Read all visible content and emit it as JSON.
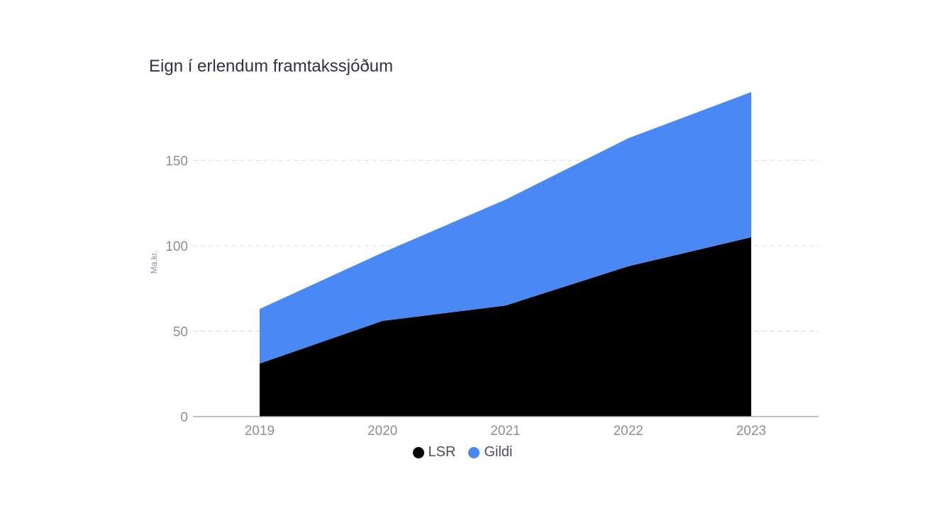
{
  "chart_data": {
    "type": "area",
    "stacked": true,
    "title": "Eign í erlendum framtakssjóðum",
    "ylabel": "Ma.kr.",
    "xlabel": "",
    "categories": [
      "2019",
      "2020",
      "2021",
      "2022",
      "2023"
    ],
    "ylim": [
      0,
      190
    ],
    "yticks": [
      0,
      50,
      100,
      150
    ],
    "grid": "horizontal-dashed",
    "legend_position": "bottom-center",
    "series": [
      {
        "name": "LSR",
        "color": "#000000",
        "values": [
          31,
          56,
          65,
          88,
          105
        ]
      },
      {
        "name": "Gildi",
        "color": "#4a88f5",
        "values": [
          32,
          40,
          62,
          75,
          85
        ]
      }
    ]
  }
}
